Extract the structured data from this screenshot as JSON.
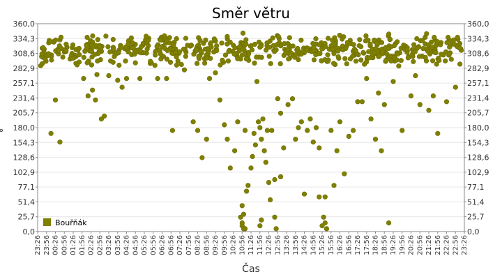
{
  "chart_data": {
    "type": "scatter",
    "title": "Směr větru",
    "xlabel": "Čas",
    "ylabel": "°",
    "ylim": [
      0,
      360
    ],
    "y_ticks": [
      "0,0",
      "25,7",
      "51,4",
      "77,1",
      "102,9",
      "128,6",
      "154,3",
      "180,0",
      "205,7",
      "231,4",
      "257,1",
      "282,9",
      "308,6",
      "334,3",
      "360,0"
    ],
    "x_ticks": [
      "23:26",
      "23:56",
      "00:26",
      "00:56",
      "01:26",
      "01:56",
      "02:26",
      "02:56",
      "03:26",
      "03:56",
      "04:26",
      "04:56",
      "05:26",
      "05:56",
      "06:26",
      "06:56",
      "07:26",
      "07:56",
      "08:26",
      "08:56",
      "09:26",
      "09:56",
      "10:26",
      "10:56",
      "11:26",
      "11:56",
      "12:26",
      "12:56",
      "13:26",
      "13:56",
      "14:26",
      "14:56",
      "15:26",
      "15:56",
      "16:26",
      "16:56",
      "17:26",
      "17:56",
      "18:26",
      "18:56",
      "19:26",
      "19:56",
      "20:26",
      "20:56",
      "21:26",
      "21:56",
      "22:26",
      "22:56",
      "23:26"
    ],
    "legend": {
      "position": "bottom-left"
    },
    "grid": true,
    "series": [
      {
        "name": "Bouřňák",
        "color": "#808000",
        "x_time": [
          "00:26",
          "00:41",
          "00:11",
          "02:01",
          "02:16",
          "02:31",
          "02:46",
          "02:41",
          "03:01",
          "03:11",
          "03:26",
          "03:56",
          "04:11",
          "04:26",
          "05:11",
          "06:11",
          "06:41",
          "07:01",
          "07:41",
          "08:11",
          "08:26",
          "08:41",
          "08:56",
          "09:06",
          "09:26",
          "09:41",
          "09:56",
          "10:06",
          "10:16",
          "10:31",
          "10:41",
          "10:51",
          "10:56",
          "11:01",
          "11:06",
          "11:11",
          "11:16",
          "11:26",
          "11:31",
          "11:36",
          "11:41",
          "11:46",
          "11:51",
          "11:56",
          "12:01",
          "12:06",
          "12:11",
          "12:16",
          "12:21",
          "12:26",
          "12:31",
          "12:36",
          "12:46",
          "12:56",
          "13:06",
          "13:16",
          "13:31",
          "13:46",
          "13:56",
          "14:06",
          "14:16",
          "14:26",
          "14:36",
          "14:46",
          "14:56",
          "15:06",
          "15:16",
          "15:26",
          "15:31",
          "15:36",
          "15:41",
          "15:46",
          "15:56",
          "16:06",
          "16:16",
          "16:26",
          "16:41",
          "16:56",
          "17:11",
          "17:26",
          "17:41",
          "17:56",
          "18:11",
          "18:26",
          "18:36",
          "18:46",
          "18:56",
          "19:11",
          "19:26",
          "19:56",
          "20:26",
          "20:41",
          "20:56",
          "21:26",
          "21:41",
          "21:56",
          "22:26",
          "22:56",
          "23:11",
          "10:56",
          "11:01",
          "11:56",
          "12:01",
          "12:46",
          "12:51",
          "11:06",
          "10:56",
          "13:06",
          "15:16",
          "15:36"
        ],
        "values": [
          228,
          155,
          170,
          265,
          235,
          245,
          272,
          228,
          195,
          200,
          270,
          262,
          250,
          265,
          265,
          265,
          265,
          175,
          280,
          190,
          175,
          128,
          160,
          265,
          275,
          228,
          185,
          160,
          110,
          140,
          190,
          25,
          10,
          30,
          5,
          70,
          80,
          110,
          130,
          170,
          150,
          260,
          190,
          180,
          160,
          195,
          140,
          120,
          175,
          85,
          55,
          175,
          90,
          230,
          205,
          145,
          220,
          230,
          160,
          180,
          190,
          65,
          175,
          195,
          155,
          180,
          145,
          10,
          25,
          15,
          5,
          295,
          175,
          80,
          140,
          190,
          100,
          165,
          175,
          225,
          225,
          265,
          195,
          160,
          240,
          140,
          220,
          15,
          260,
          175,
          235,
          270,
          220,
          210,
          235,
          170,
          225,
          250,
          290,
          15,
          5,
          10,
          20,
          25,
          5,
          175,
          45,
          95,
          60,
          60
        ]
      }
    ],
    "dense_band": {
      "description_range": [
        285,
        345
      ],
      "count": 600
    }
  }
}
